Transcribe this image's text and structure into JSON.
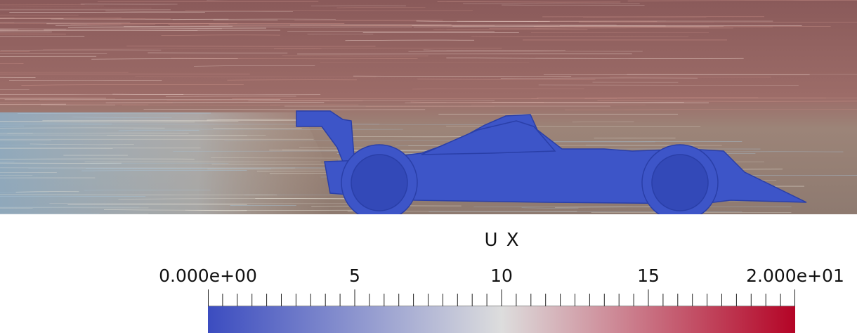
{
  "visualization": {
    "field_name": "U X",
    "color_map": {
      "min_label": "0.000e+00",
      "max_label": "2.000e+01",
      "ticks": [
        "5",
        "10",
        "15"
      ],
      "range": [
        0,
        20
      ],
      "colors": [
        "#3b4cc0",
        "#dddddd",
        "#b40426"
      ]
    },
    "object_color": "#3d55c8",
    "subject": "race-car-streamlines"
  }
}
